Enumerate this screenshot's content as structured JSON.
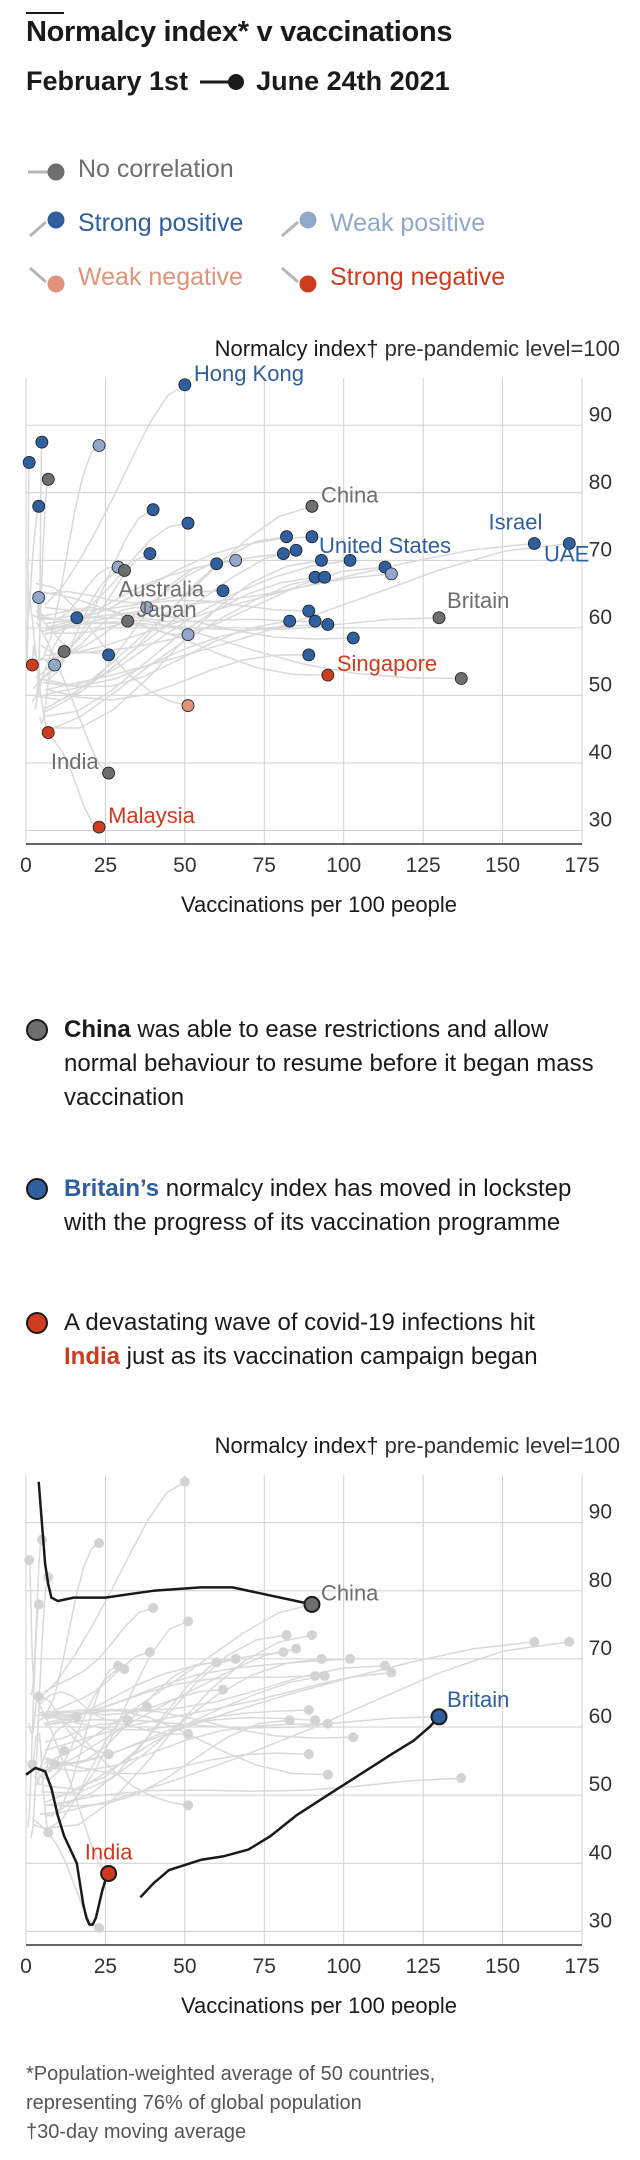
{
  "header": {
    "title": "Normalcy index* v vaccinations",
    "subtitle_start": "February 1st",
    "subtitle_end": "June 24th 2021"
  },
  "legend": [
    {
      "label": "No correlation",
      "color": "#6e6e6e"
    },
    {
      "label": "Strong positive",
      "color": "#2f5f9e"
    },
    {
      "label": "Weak positive",
      "color": "#8fa8cc"
    },
    {
      "label": "Weak negative",
      "color": "#e1937a"
    },
    {
      "label": "Strong negative",
      "color": "#cf3b1f"
    }
  ],
  "colors": {
    "none": "#6e6e6e",
    "sp": "#2f5f9e",
    "wp": "#8fa8cc",
    "wn": "#e1937a",
    "sn": "#cf3b1f",
    "grey_line": "#d9d9d9",
    "grid": "#d0d0d0"
  },
  "annotations": [
    {
      "name": "China",
      "pre": "",
      "bold": "China",
      "post": " was able to ease restrictions and allow normal behaviour to resume before it began mass vaccination",
      "color": "#6e6e6e"
    },
    {
      "name": "Britain",
      "pre": "",
      "bold": "Britain’s",
      "post": " normalcy index has moved in lockstep with the progress of its vaccination programme",
      "color": "#2f5f9e"
    },
    {
      "name": "India",
      "pre": "A devastating wave of covid-19 infections hit ",
      "bold": "India",
      "post": " just as its vaccination campaign began",
      "color": "#cf3b1f"
    }
  ],
  "footnotes": [
    "*Population-weighted average of 50 countries,",
    "representing 76% of global population",
    "†30-day moving average"
  ],
  "chart_data": [
    {
      "type": "scatter",
      "ylabel_bold": "Normalcy index†",
      "ylabel_rest": " pre-pandemic level=100",
      "xlabel": "Vaccinations per 100 people",
      "xlim": [
        0,
        175
      ],
      "ylim": [
        28,
        97
      ],
      "xticks": [
        0,
        25,
        50,
        75,
        100,
        125,
        150,
        175
      ],
      "yticks": [
        30,
        40,
        50,
        60,
        70,
        80,
        90
      ],
      "points": [
        {
          "x": 50,
          "y": 96,
          "c": "sp",
          "label": "Hong Kong",
          "lpos": "right"
        },
        {
          "x": 1,
          "y": 84.5,
          "c": "sp"
        },
        {
          "x": 5,
          "y": 87.5,
          "c": "sp"
        },
        {
          "x": 23,
          "y": 87,
          "c": "wp"
        },
        {
          "x": 7,
          "y": 82,
          "c": "none"
        },
        {
          "x": 4,
          "y": 78,
          "c": "sp"
        },
        {
          "x": 90,
          "y": 78,
          "c": "none",
          "label": "China",
          "lpos": "right"
        },
        {
          "x": 40,
          "y": 77.5,
          "c": "sp"
        },
        {
          "x": 51,
          "y": 75.5,
          "c": "sp"
        },
        {
          "x": 82,
          "y": 73.5,
          "c": "sp"
        },
        {
          "x": 90,
          "y": 73.5,
          "c": "sp"
        },
        {
          "x": 81,
          "y": 71,
          "c": "sp"
        },
        {
          "x": 85,
          "y": 71.5,
          "c": "sp"
        },
        {
          "x": 39,
          "y": 71,
          "c": "sp"
        },
        {
          "x": 66,
          "y": 70,
          "c": "wp"
        },
        {
          "x": 60,
          "y": 69.5,
          "c": "sp"
        },
        {
          "x": 93,
          "y": 70,
          "c": "sp"
        },
        {
          "x": 102,
          "y": 70,
          "c": "sp"
        },
        {
          "x": 160,
          "y": 72.5,
          "c": "sp",
          "label": "Israel",
          "lpos": "above-left"
        },
        {
          "x": 171,
          "y": 72.5,
          "c": "sp",
          "label": "UAE",
          "lpos": "below-left"
        },
        {
          "x": 113,
          "y": 69,
          "c": "sp",
          "label": "United States",
          "lpos": "above"
        },
        {
          "x": 29,
          "y": 69,
          "c": "wp"
        },
        {
          "x": 31,
          "y": 68.5,
          "c": "none",
          "label": "Australia",
          "lpos": "below"
        },
        {
          "x": 91,
          "y": 67.5,
          "c": "sp"
        },
        {
          "x": 94,
          "y": 67.5,
          "c": "sp"
        },
        {
          "x": 115,
          "y": 68,
          "c": "wp"
        },
        {
          "x": 62,
          "y": 65.5,
          "c": "sp"
        },
        {
          "x": 4,
          "y": 64.5,
          "c": "wp"
        },
        {
          "x": 38,
          "y": 63,
          "c": "wp"
        },
        {
          "x": 89,
          "y": 62.5,
          "c": "sp"
        },
        {
          "x": 16,
          "y": 61.5,
          "c": "sp"
        },
        {
          "x": 32,
          "y": 61,
          "c": "none",
          "label": "Japan",
          "lpos": "right"
        },
        {
          "x": 130,
          "y": 61.5,
          "c": "none",
          "label": "Britain",
          "lpos": "above-right"
        },
        {
          "x": 83,
          "y": 61,
          "c": "sp"
        },
        {
          "x": 91,
          "y": 61,
          "c": "sp"
        },
        {
          "x": 95,
          "y": 60.5,
          "c": "sp"
        },
        {
          "x": 51,
          "y": 59,
          "c": "wp"
        },
        {
          "x": 103,
          "y": 58.5,
          "c": "sp"
        },
        {
          "x": 12,
          "y": 56.5,
          "c": "none"
        },
        {
          "x": 26,
          "y": 56,
          "c": "sp"
        },
        {
          "x": 89,
          "y": 56,
          "c": "sp"
        },
        {
          "x": 9,
          "y": 54.5,
          "c": "wp"
        },
        {
          "x": 2,
          "y": 54.5,
          "c": "sn"
        },
        {
          "x": 95,
          "y": 53,
          "c": "sn",
          "label": "Singapore",
          "lpos": "right"
        },
        {
          "x": 137,
          "y": 52.5,
          "c": "none"
        },
        {
          "x": 51,
          "y": 48.5,
          "c": "wn"
        },
        {
          "x": 7,
          "y": 44.5,
          "c": "sn"
        },
        {
          "x": 26,
          "y": 38.5,
          "c": "none",
          "label": "India",
          "lpos": "left"
        },
        {
          "x": 23,
          "y": 30.5,
          "c": "sn",
          "label": "Malaysia",
          "lpos": "right"
        }
      ]
    },
    {
      "type": "line",
      "ylabel_bold": "Normalcy index†",
      "ylabel_rest": " pre-pandemic level=100",
      "xlabel": "Vaccinations per 100 people",
      "xlim": [
        0,
        175
      ],
      "ylim": [
        28,
        97
      ],
      "xticks": [
        0,
        25,
        50,
        75,
        100,
        125,
        150,
        175
      ],
      "yticks": [
        30,
        40,
        50,
        60,
        70,
        80,
        90
      ],
      "series": [
        {
          "name": "China",
          "c": "none",
          "lpos": "right",
          "x": [
            4,
            5,
            6,
            7,
            8,
            10,
            15,
            25,
            40,
            55,
            65,
            75,
            85,
            90
          ],
          "y": [
            96,
            90,
            84,
            81,
            79,
            78.5,
            79,
            79,
            80,
            80.5,
            80.5,
            79.5,
            78.5,
            78
          ]
        },
        {
          "name": "Britain",
          "c": "sp",
          "lpos": "above-right",
          "x": [
            36,
            40,
            45,
            55,
            62,
            70,
            77,
            85,
            95,
            105,
            115,
            122,
            127,
            130
          ],
          "y": [
            35,
            37,
            39,
            40.5,
            41,
            42,
            44,
            47,
            50,
            53,
            56,
            58,
            60,
            61.5
          ]
        },
        {
          "name": "India",
          "c": "sn",
          "lpos": "above",
          "x": [
            0,
            3,
            6,
            8,
            10,
            12,
            14,
            16,
            17,
            18,
            19,
            20,
            21,
            22,
            23,
            24,
            25,
            26
          ],
          "y": [
            53,
            54,
            53.5,
            51,
            47,
            44,
            42,
            40,
            37,
            34,
            32,
            31,
            31,
            32,
            34,
            36,
            37.5,
            38.5
          ]
        }
      ]
    }
  ]
}
